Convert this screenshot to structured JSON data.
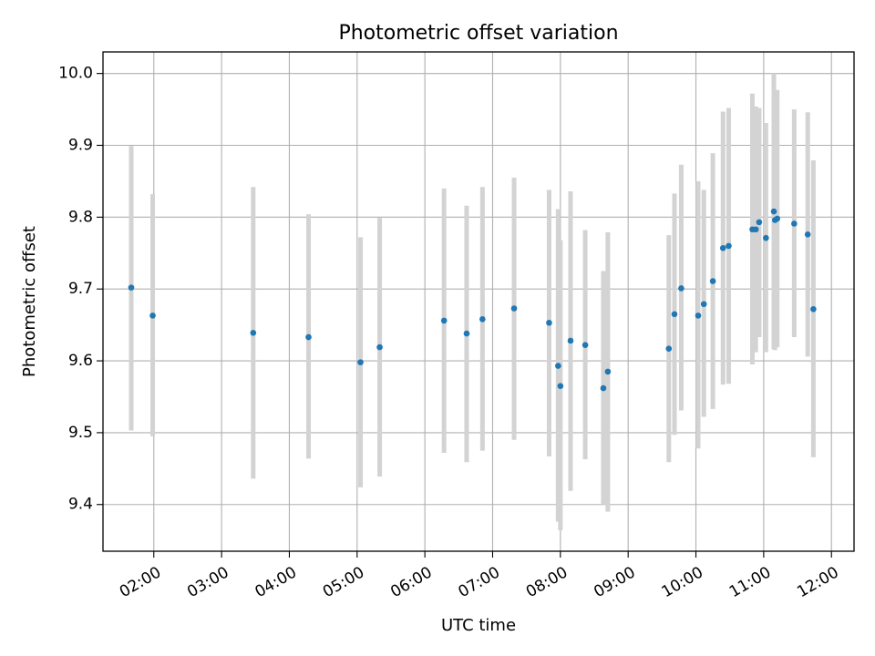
{
  "chart_data": {
    "type": "scatter",
    "title": "Photometric offset variation",
    "xlabel": "UTC time",
    "ylabel": "Photometric offset",
    "x_ticks": [
      "02:00",
      "03:00",
      "04:00",
      "05:00",
      "06:00",
      "07:00",
      "08:00",
      "09:00",
      "10:00",
      "11:00",
      "12:00"
    ],
    "y_ticks": [
      "9.4",
      "9.5",
      "9.6",
      "9.7",
      "9.8",
      "9.9",
      "10.0"
    ],
    "xlim": [
      "01:15",
      "12:20"
    ],
    "ylim": [
      9.335,
      10.03
    ],
    "grid": true,
    "x_tick_rotation_deg": 30,
    "colors": {
      "points": "#1f77b4",
      "error_bars": "#d3d3d3",
      "grid": "#b0b0b0",
      "axes": "#000000"
    },
    "series": [
      {
        "marker": "point",
        "errorbars": true,
        "points": [
          {
            "x": "01:40",
            "y": 9.702,
            "ylo": 9.503,
            "yhi": 9.899
          },
          {
            "x": "01:59",
            "y": 9.663,
            "ylo": 9.495,
            "yhi": 9.832
          },
          {
            "x": "03:28",
            "y": 9.639,
            "ylo": 9.436,
            "yhi": 9.842
          },
          {
            "x": "04:17",
            "y": 9.633,
            "ylo": 9.464,
            "yhi": 9.804
          },
          {
            "x": "05:03",
            "y": 9.598,
            "ylo": 9.424,
            "yhi": 9.772
          },
          {
            "x": "05:20",
            "y": 9.619,
            "ylo": 9.439,
            "yhi": 9.799
          },
          {
            "x": "06:17",
            "y": 9.656,
            "ylo": 9.472,
            "yhi": 9.84
          },
          {
            "x": "06:37",
            "y": 9.638,
            "ylo": 9.459,
            "yhi": 9.816
          },
          {
            "x": "06:51",
            "y": 9.658,
            "ylo": 9.475,
            "yhi": 9.842
          },
          {
            "x": "07:19",
            "y": 9.673,
            "ylo": 9.49,
            "yhi": 9.855
          },
          {
            "x": "07:50",
            "y": 9.653,
            "ylo": 9.467,
            "yhi": 9.838
          },
          {
            "x": "07:58",
            "y": 9.593,
            "ylo": 9.376,
            "yhi": 9.811
          },
          {
            "x": "08:00",
            "y": 9.565,
            "ylo": 9.364,
            "yhi": 9.768
          },
          {
            "x": "08:09",
            "y": 9.628,
            "ylo": 9.419,
            "yhi": 9.836
          },
          {
            "x": "08:22",
            "y": 9.622,
            "ylo": 9.463,
            "yhi": 9.782
          },
          {
            "x": "08:38",
            "y": 9.562,
            "ylo": 9.4,
            "yhi": 9.725
          },
          {
            "x": "08:42",
            "y": 9.585,
            "ylo": 9.39,
            "yhi": 9.779
          },
          {
            "x": "09:36",
            "y": 9.617,
            "ylo": 9.459,
            "yhi": 9.775
          },
          {
            "x": "09:41",
            "y": 9.665,
            "ylo": 9.497,
            "yhi": 9.833
          },
          {
            "x": "09:47",
            "y": 9.701,
            "ylo": 9.531,
            "yhi": 9.873
          },
          {
            "x": "10:02",
            "y": 9.663,
            "ylo": 9.478,
            "yhi": 9.85
          },
          {
            "x": "10:07",
            "y": 9.679,
            "ylo": 9.522,
            "yhi": 9.838
          },
          {
            "x": "10:15",
            "y": 9.711,
            "ylo": 9.533,
            "yhi": 9.889
          },
          {
            "x": "10:24",
            "y": 9.757,
            "ylo": 9.567,
            "yhi": 9.947
          },
          {
            "x": "10:29",
            "y": 9.76,
            "ylo": 9.568,
            "yhi": 9.952
          },
          {
            "x": "10:50",
            "y": 9.783,
            "ylo": 9.595,
            "yhi": 9.972
          },
          {
            "x": "10:53",
            "y": 9.783,
            "ylo": 9.612,
            "yhi": 9.954
          },
          {
            "x": "10:56",
            "y": 9.793,
            "ylo": 9.633,
            "yhi": 9.952
          },
          {
            "x": "11:02",
            "y": 9.771,
            "ylo": 9.612,
            "yhi": 9.931
          },
          {
            "x": "11:09",
            "y": 9.808,
            "ylo": 9.616,
            "yhi": 10.0
          },
          {
            "x": "11:10",
            "y": 9.796,
            "ylo": 9.615,
            "yhi": 9.977
          },
          {
            "x": "11:12",
            "y": 9.798,
            "ylo": 9.619,
            "yhi": 9.977
          },
          {
            "x": "11:27",
            "y": 9.791,
            "ylo": 9.633,
            "yhi": 9.95
          },
          {
            "x": "11:39",
            "y": 9.776,
            "ylo": 9.606,
            "yhi": 9.946
          },
          {
            "x": "11:44",
            "y": 9.672,
            "ylo": 9.466,
            "yhi": 9.879
          }
        ]
      }
    ]
  }
}
